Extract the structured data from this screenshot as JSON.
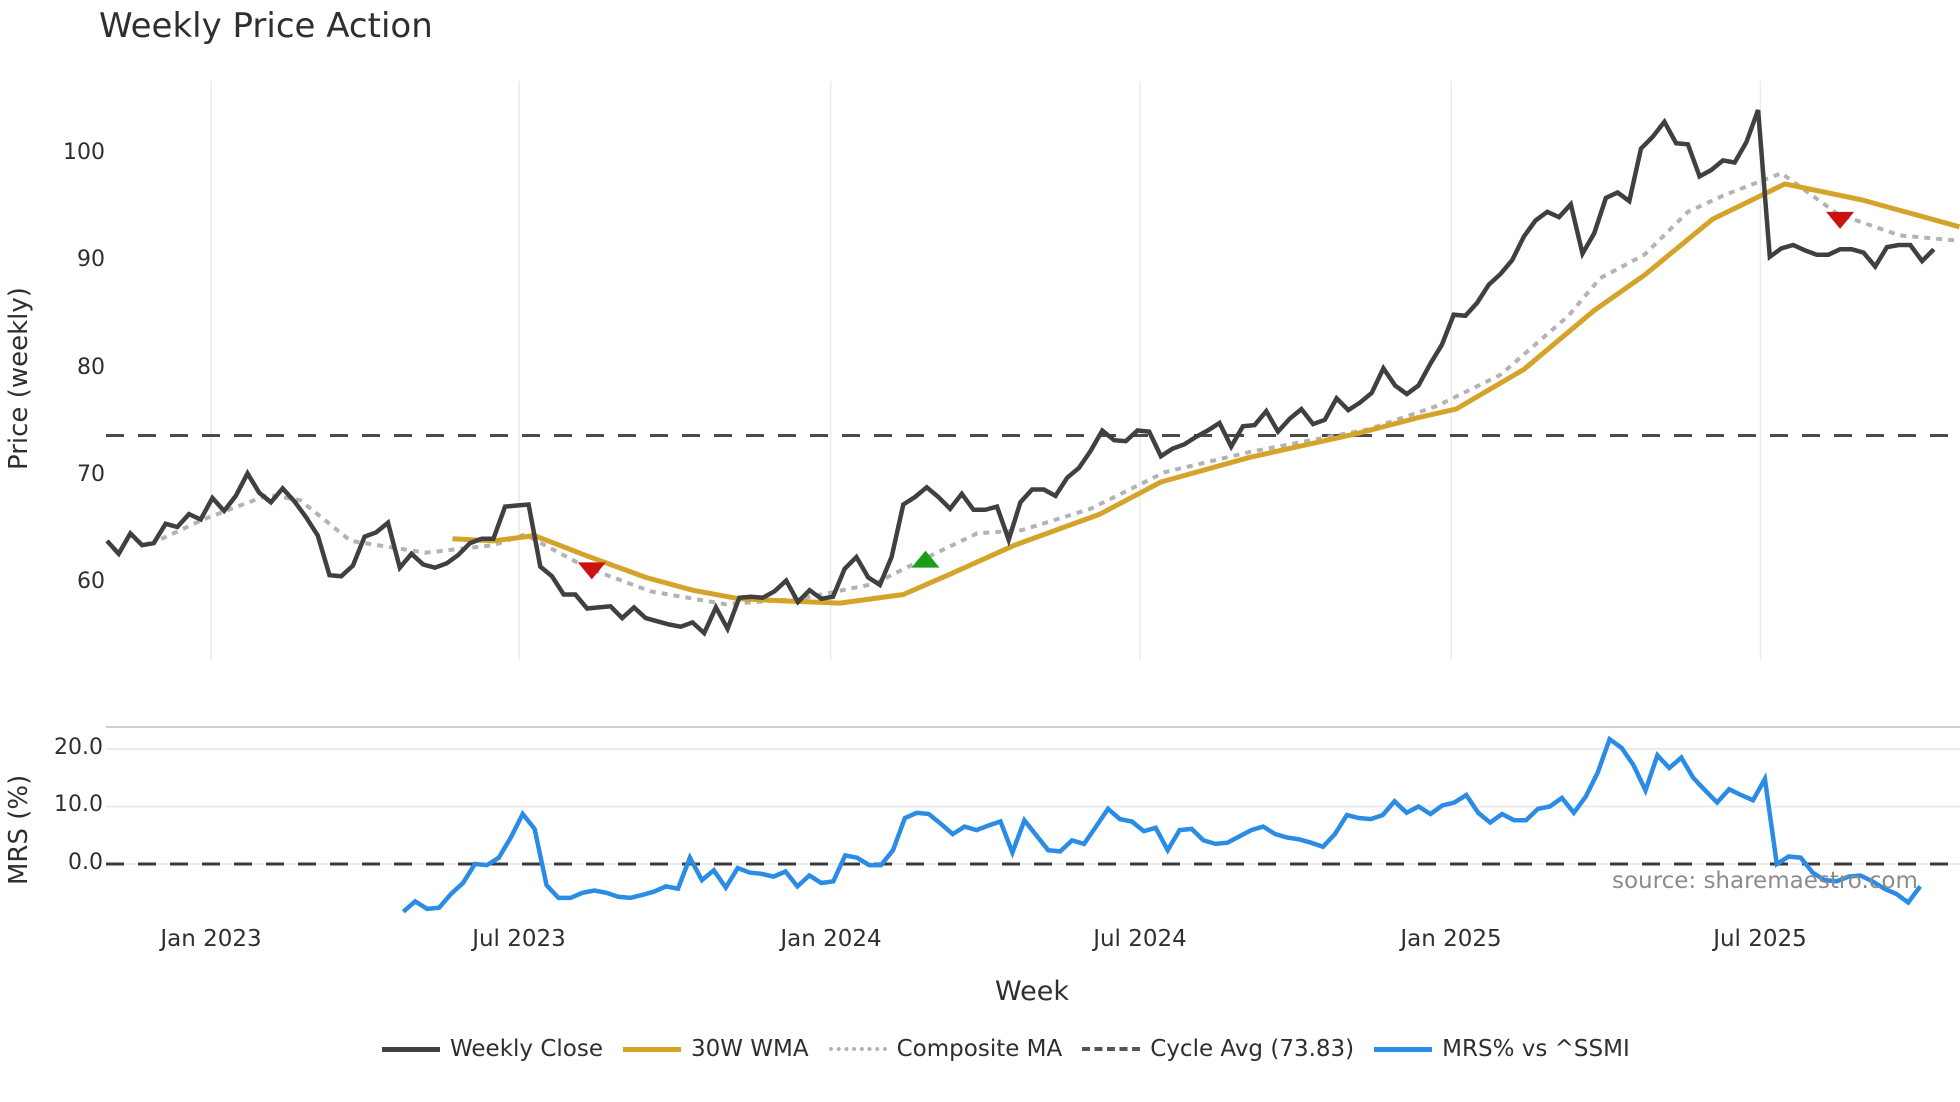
{
  "title": "Weekly Price Action",
  "source_label": "source: sharemaestro.com",
  "xlabel": "Week",
  "price_panel": {
    "ylabel": "Price (weekly)",
    "yticks": [
      "100",
      "90",
      "80",
      "70",
      "60"
    ]
  },
  "mrs_panel": {
    "ylabel": "MRS (%)",
    "yticks": [
      "20.0",
      "10.0",
      "0.0"
    ]
  },
  "xticks": [
    "Jan 2023",
    "Jul 2023",
    "Jan 2024",
    "Jul 2024",
    "Jan 2025",
    "Jul 2025"
  ],
  "legend": [
    {
      "label": "Weekly Close",
      "style": "solid",
      "color": "#404040"
    },
    {
      "label": "30W WMA",
      "style": "solid",
      "color": "#d4a32a"
    },
    {
      "label": "Composite MA",
      "style": "dotted",
      "color": "#b3b3b3"
    },
    {
      "label": "Cycle Avg (73.83)",
      "style": "dashed",
      "color": "#555555"
    },
    {
      "label": "MRS% vs ^SSMI",
      "style": "solid",
      "color": "#2b8ce6"
    }
  ],
  "colors": {
    "close": "#404040",
    "wma": "#d4a32a",
    "composite": "#b3b3b3",
    "cycle": "#4a4a4a",
    "mrs": "#2b8ce6",
    "sell_marker": "#cc1111",
    "buy_marker": "#1a9e1a",
    "grid": "#e8ebf0"
  },
  "chart_data": [
    {
      "type": "line",
      "title": "Weekly Price Action",
      "xlabel": "Week",
      "ylabel": "Price (weekly)",
      "ylim": [
        53,
        106
      ],
      "x_ticks": [
        "Jan 2023",
        "Jul 2023",
        "Jan 2024",
        "Jul 2024",
        "Jan 2025",
        "Jul 2025"
      ],
      "x_tick_week_index": [
        8.9,
        35.2,
        61.8,
        88.2,
        114.8,
        141.2
      ],
      "grid": true,
      "legend_position": "bottom",
      "series": [
        {
          "name": "Weekly Close",
          "start_index": 0,
          "values": [
            64.0,
            62.8,
            64.7,
            63.6,
            63.8,
            65.6,
            65.3,
            66.5,
            66.0,
            68.0,
            66.8,
            68.2,
            70.3,
            68.5,
            67.6,
            68.9,
            67.7,
            66.2,
            64.5,
            60.8,
            60.7,
            61.7,
            64.4,
            64.8,
            65.7,
            61.5,
            62.8,
            61.8,
            61.5,
            61.9,
            62.7,
            63.8,
            64.2,
            64.2,
            67.2,
            67.3,
            67.4,
            61.6,
            60.7,
            59.0,
            59.0,
            57.7,
            57.8,
            57.9,
            56.8,
            57.8,
            56.8,
            56.5,
            56.2,
            56.0,
            56.4,
            55.4,
            57.8,
            55.8,
            58.7,
            58.8,
            58.7,
            59.3,
            60.3,
            58.3,
            59.4,
            58.6,
            58.8,
            61.4,
            62.5,
            60.6,
            59.9,
            62.5,
            67.4,
            68.1,
            69.0,
            68.1,
            67.0,
            68.4,
            66.9,
            66.9,
            67.2,
            64.1,
            67.6,
            68.8,
            68.8,
            68.2,
            69.9,
            70.8,
            72.4,
            74.3,
            73.4,
            73.3,
            74.3,
            74.2,
            71.9,
            72.6,
            73.0,
            73.7,
            74.3,
            75.0,
            72.8,
            74.7,
            74.8,
            76.1,
            74.2,
            75.4,
            76.3,
            74.9,
            75.3,
            77.3,
            76.2,
            76.9,
            77.8,
            80.1,
            78.5,
            77.7,
            78.5,
            80.5,
            82.3,
            85.1,
            85.0,
            86.2,
            87.9,
            88.9,
            90.2,
            92.4,
            93.9,
            94.7,
            94.2,
            95.4,
            90.8,
            92.7,
            96.0,
            96.5,
            95.7,
            100.6,
            101.7,
            103.1,
            101.1,
            101.0,
            98.0,
            98.6,
            99.5,
            99.3,
            101.2,
            104.2,
            90.5,
            91.3,
            91.6,
            91.1,
            90.7,
            90.7,
            91.2,
            91.2,
            90.9,
            89.6,
            91.4,
            91.6,
            91.6,
            90.1,
            91.2
          ]
        },
        {
          "name": "30W WMA",
          "points": [
            [
              29.5,
              64.2
            ],
            [
              33,
              64.0
            ],
            [
              36.5,
              64.5
            ],
            [
              41,
              62.6
            ],
            [
              46,
              60.6
            ],
            [
              50,
              59.4
            ],
            [
              54,
              58.6
            ],
            [
              58,
              58.4
            ],
            [
              62.6,
              58.2
            ],
            [
              68,
              59.0
            ],
            [
              72,
              60.9
            ],
            [
              77.5,
              63.6
            ],
            [
              84.8,
              66.5
            ],
            [
              90,
              69.5
            ],
            [
              97.6,
              71.8
            ],
            [
              106.7,
              74.0
            ],
            [
              112,
              75.5
            ],
            [
              115.2,
              76.3
            ],
            [
              121,
              80.0
            ],
            [
              127,
              85.5
            ],
            [
              131.3,
              88.8
            ],
            [
              137.1,
              94.0
            ],
            [
              143.3,
              97.3
            ],
            [
              149.9,
              95.8
            ],
            [
              158.2,
              93.3
            ]
          ]
        },
        {
          "name": "Composite MA",
          "points": [
            [
              3.7,
              63.7
            ],
            [
              8.2,
              66.0
            ],
            [
              13.8,
              68.3
            ],
            [
              16.5,
              67.8
            ],
            [
              20.8,
              64.0
            ],
            [
              27.2,
              62.9
            ],
            [
              33,
              63.6
            ],
            [
              35.7,
              64.6
            ],
            [
              41,
              61.5
            ],
            [
              46.4,
              59.3
            ],
            [
              52.8,
              58.1
            ],
            [
              59.2,
              58.6
            ],
            [
              65.5,
              60.0
            ],
            [
              70.1,
              62.5
            ],
            [
              74.3,
              64.7
            ],
            [
              78.1,
              65.0
            ],
            [
              84,
              67.0
            ],
            [
              90.3,
              70.4
            ],
            [
              97.6,
              72.3
            ],
            [
              107.7,
              74.4
            ],
            [
              113.6,
              76.6
            ],
            [
              119,
              79.5
            ],
            [
              124.8,
              85.0
            ],
            [
              127.5,
              88.5
            ],
            [
              131.3,
              90.7
            ],
            [
              135,
              94.7
            ],
            [
              138.2,
              96.3
            ],
            [
              143,
              98.3
            ],
            [
              147.8,
              94.5
            ],
            [
              153.1,
              92.5
            ],
            [
              158.2,
              92.0
            ]
          ]
        },
        {
          "name": "Cycle Avg (73.83)",
          "constant": 73.83
        }
      ],
      "markers": [
        {
          "type": "sell",
          "shape": "triangle-down",
          "index": 41.4,
          "value": 61.2
        },
        {
          "type": "buy",
          "shape": "triangle-up",
          "index": 69.9,
          "value": 62.3
        },
        {
          "type": "sell",
          "shape": "triangle-down",
          "index": 148.0,
          "value": 93.9
        }
      ]
    },
    {
      "type": "line",
      "title": "",
      "xlabel": "Week",
      "ylabel": "MRS (%)",
      "ylim": [
        -10,
        23
      ],
      "y_ticks": [
        20.0,
        10.0,
        0.0
      ],
      "reference_line": 0.0,
      "series": [
        {
          "name": "MRS% vs ^SSMI",
          "start_index": 25.3,
          "step": 1.02,
          "values": [
            -8.3,
            -6.5,
            -7.8,
            -7.6,
            -5.2,
            -3.3,
            0.0,
            -0.2,
            1.1,
            4.6,
            8.7,
            6.1,
            -3.7,
            -5.9,
            -5.9,
            -5.0,
            -4.6,
            -5.0,
            -5.7,
            -5.9,
            -5.4,
            -4.8,
            -3.9,
            -4.3,
            1.1,
            -2.8,
            -1.1,
            -4.1,
            -0.7,
            -1.5,
            -1.7,
            -2.2,
            -1.3,
            -3.9,
            -2.0,
            -3.3,
            -3.0,
            1.5,
            1.1,
            -0.2,
            -0.2,
            2.4,
            8.0,
            8.9,
            8.7,
            7.0,
            5.2,
            6.5,
            5.9,
            6.7,
            7.4,
            2.0,
            7.6,
            5.0,
            2.4,
            2.2,
            4.1,
            3.5,
            6.5,
            9.6,
            7.8,
            7.4,
            5.7,
            6.3,
            2.4,
            5.9,
            6.1,
            4.1,
            3.5,
            3.7,
            4.8,
            5.9,
            6.5,
            5.2,
            4.6,
            4.3,
            3.7,
            3.0,
            5.2,
            8.5,
            8.0,
            7.8,
            8.5,
            10.9,
            8.9,
            10.0,
            8.7,
            10.2,
            10.7,
            12.0,
            8.9,
            7.2,
            8.7,
            7.6,
            7.6,
            9.6,
            10.0,
            11.5,
            8.9,
            11.7,
            15.9,
            21.7,
            20.2,
            17.2,
            12.8,
            18.9,
            16.7,
            18.5,
            15.0,
            12.8,
            10.7,
            13.0,
            12.0,
            11.1,
            14.8,
            0.0,
            1.3,
            1.1,
            -1.5,
            -2.8,
            -3.0,
            -2.2,
            -2.0,
            -3.0,
            -4.3,
            -5.2,
            -6.7,
            -3.9
          ]
        }
      ]
    }
  ]
}
